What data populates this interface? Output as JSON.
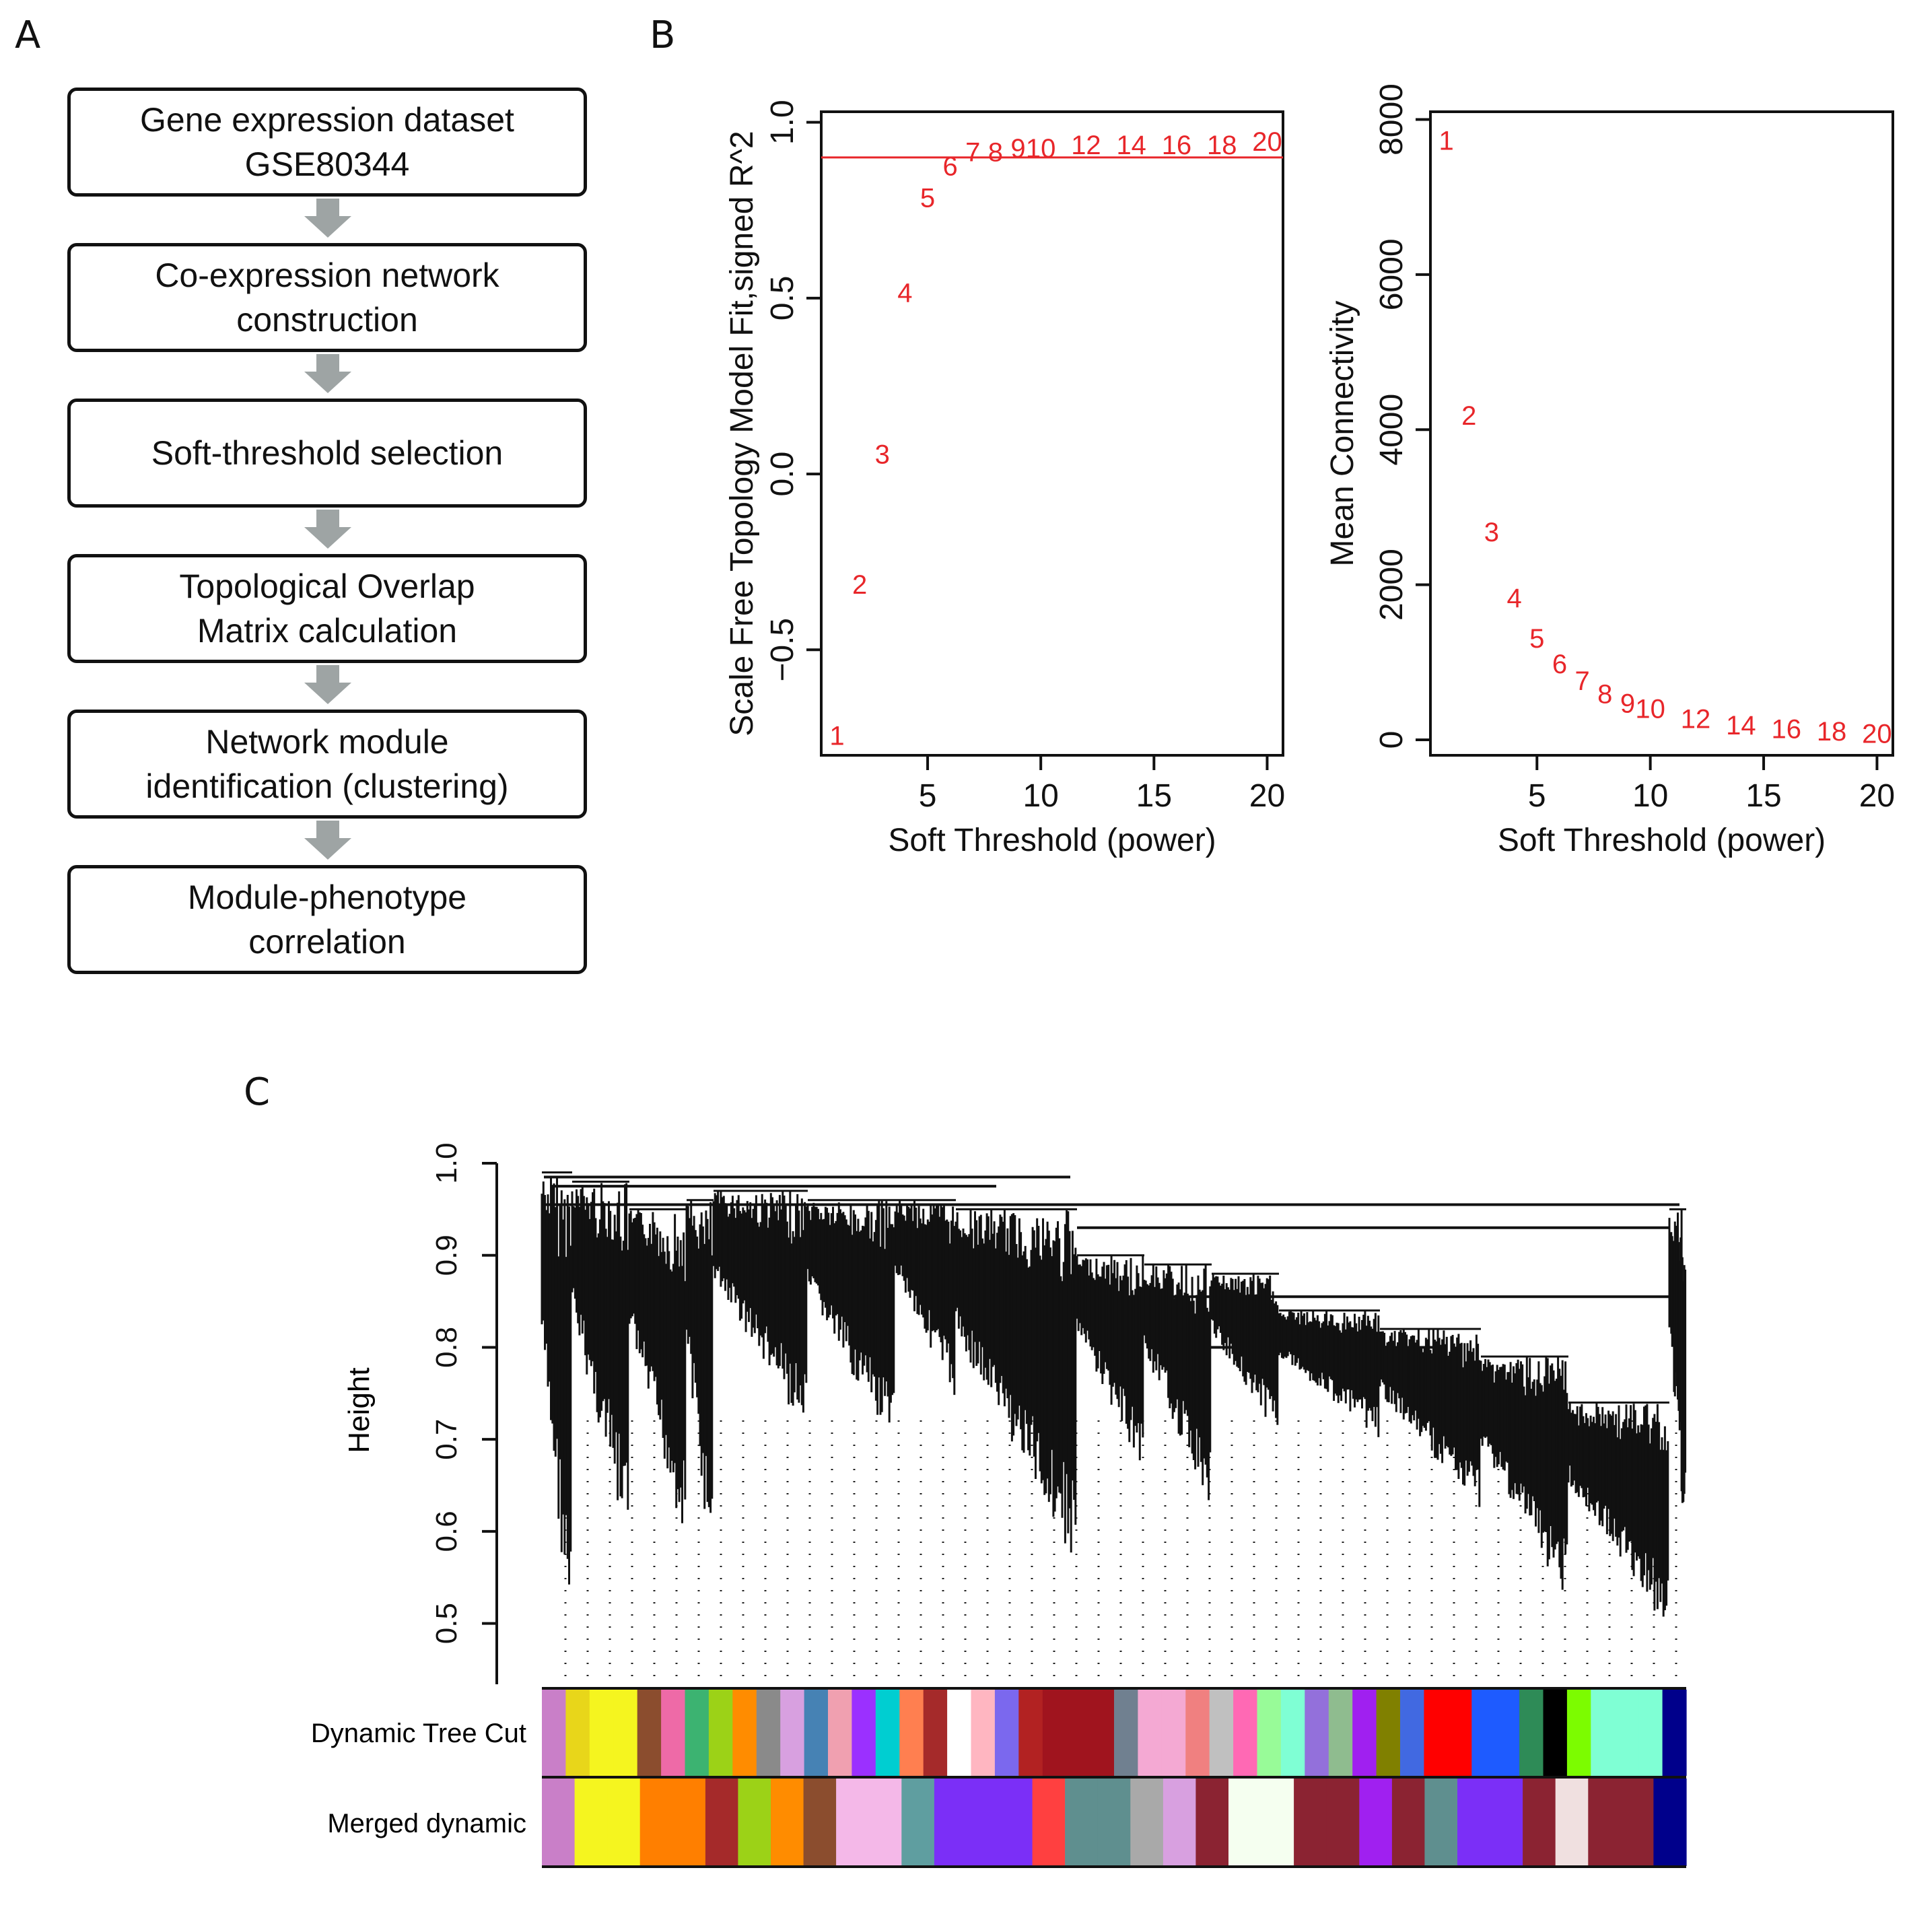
{
  "panel_a": {
    "letter": "A",
    "steps": [
      {
        "line1": "Gene expression dataset",
        "line2": "GSE80344"
      },
      {
        "line1": "Co-expression network",
        "line2": "construction"
      },
      {
        "line1": "Soft-threshold selection",
        "line2": ""
      },
      {
        "line1": "Topological Overlap",
        "line2": "Matrix calculation"
      },
      {
        "line1": "Network module",
        "line2": "identification (clustering)"
      },
      {
        "line1": "Module-phenotype",
        "line2": "correlation"
      }
    ],
    "arrow_color": "#9ea4a4"
  },
  "panel_b": {
    "letter": "B",
    "point_color": "#e8262a"
  },
  "panel_c": {
    "letter": "C",
    "ylabel": "Height",
    "yticks": [
      "0.5",
      "0.6",
      "0.7",
      "0.8",
      "0.9",
      "1.0"
    ],
    "ylim": [
      0.45,
      1.0
    ],
    "row_labels": [
      "Dynamic Tree Cut",
      "Merged dynamic"
    ],
    "dynamic_colors": [
      "#c97fc8",
      "#e8d61a",
      "#f5f51f",
      "#f5f51f",
      "#8b4d2e",
      "#ee6aa7",
      "#3cb371",
      "#9cd217",
      "#ff8c00",
      "#8a8a8a",
      "#d8a0e0",
      "#4682b4",
      "#f0a0b0",
      "#9b30ff",
      "#00ced1",
      "#ff7f50",
      "#a52a2a",
      "#ffffff",
      "#ffb6c1",
      "#7b68ee",
      "#b22222",
      "#a0141e",
      "#a0141e",
      "#a0141e",
      "#708090",
      "#f4a9d3",
      "#f4a9d3",
      "#f08080",
      "#c0c0c0",
      "#ff69b4",
      "#98fb98",
      "#7fffd4",
      "#9370db",
      "#8fbc8f",
      "#a020f0",
      "#808000",
      "#4169e1",
      "#ff0000",
      "#ff0000",
      "#1e5bff",
      "#1e5bff",
      "#2e8b57",
      "#000000",
      "#7cfc00",
      "#7fffd4",
      "#7fffd4",
      "#7fffd4",
      "#00008b"
    ],
    "merged_colors": [
      "#c97fc8",
      "#f5f51f",
      "#f5f51f",
      "#ff7f00",
      "#ff7f00",
      "#a52a2a",
      "#9cd217",
      "#ff8c00",
      "#8b4d2e",
      "#f4b8e8",
      "#f4b8e8",
      "#5f9ea0",
      "#7b2ff7",
      "#7b2ff7",
      "#7b2ff7",
      "#ff4040",
      "#5f8f8f",
      "#5f8f8f",
      "#a9a9a9",
      "#d8a0e0",
      "#8b2332",
      "#f5fff0",
      "#f5fff0",
      "#8b2332",
      "#8b2332",
      "#a020f0",
      "#8b2332",
      "#5f8f8f",
      "#7b2ff7",
      "#7b2ff7",
      "#8b2332",
      "#f0e0e0",
      "#8b2332",
      "#8b2332",
      "#00008b"
    ],
    "sep_color": "#111111"
  },
  "chart_data": [
    {
      "type": "scatter",
      "title": "",
      "xlabel": "Soft Threshold (power)",
      "ylabel": "Scale Free Topology Model Fit,signed R^2",
      "xlim": [
        0.3,
        20.7
      ],
      "ylim": [
        -0.8,
        1.03
      ],
      "xticks": [
        5,
        10,
        15,
        20
      ],
      "yticks": [
        -0.5,
        0.0,
        0.5,
        1.0
      ],
      "x": [
        1,
        2,
        3,
        4,
        5,
        6,
        7,
        8,
        9,
        10,
        12,
        14,
        16,
        18,
        20
      ],
      "y": [
        -0.74,
        -0.31,
        0.06,
        0.52,
        0.79,
        0.88,
        0.92,
        0.92,
        0.93,
        0.93,
        0.94,
        0.94,
        0.94,
        0.94,
        0.95
      ],
      "labels": [
        "1",
        "2",
        "3",
        "4",
        "5",
        "6",
        "7",
        "8",
        "9",
        "10",
        "12",
        "14",
        "16",
        "18",
        "20"
      ],
      "hline": 0.9
    },
    {
      "type": "scatter",
      "title": "",
      "xlabel": "Soft Threshold (power)",
      "ylabel": "Mean Connectivity",
      "xlim": [
        0.3,
        20.7
      ],
      "ylim": [
        -200,
        8100
      ],
      "xticks": [
        5,
        10,
        15,
        20
      ],
      "yticks": [
        0,
        2000,
        4000,
        6000,
        8000
      ],
      "x": [
        1,
        2,
        3,
        4,
        5,
        6,
        7,
        8,
        9,
        10,
        12,
        14,
        16,
        18,
        20
      ],
      "y": [
        7750,
        4200,
        2700,
        1850,
        1330,
        1000,
        780,
        610,
        490,
        420,
        290,
        210,
        160,
        130,
        100
      ],
      "labels": [
        "1",
        "2",
        "3",
        "4",
        "5",
        "6",
        "7",
        "8",
        "9",
        "10",
        "12",
        "14",
        "16",
        "18",
        "20"
      ]
    }
  ]
}
